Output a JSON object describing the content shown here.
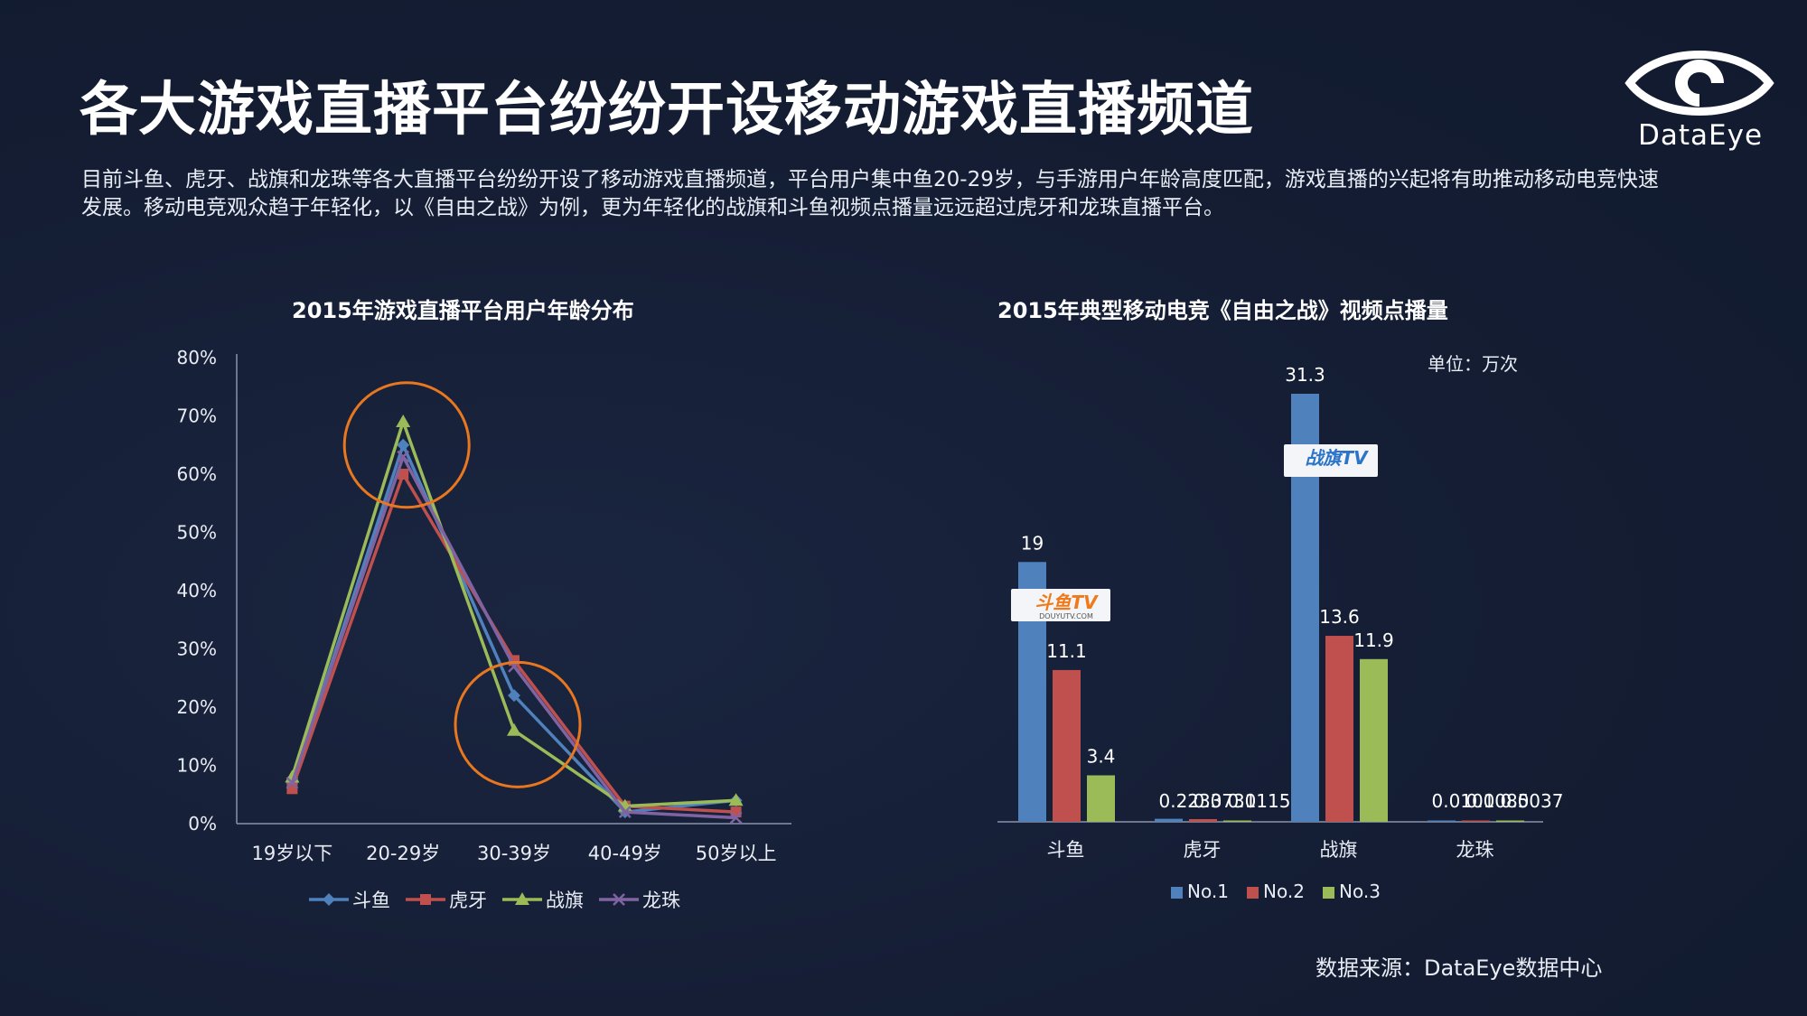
{
  "page": {
    "title": "各大游戏直播平台纷纷开设移动游戏直播频道",
    "description": "目前斗鱼、虎牙、战旗和龙珠等各大直播平台纷纷开设了移动游戏直播频道，平台用户集中鱼20-29岁，与手游用户年龄高度匹配，游戏直播的兴起将有助推动移动电竞快速发展。移动电竞观众趋于年轻化，以《自由之战》为例，更为年轻化的战旗和斗鱼视频点播量远远超过虎牙和龙珠直播平台。",
    "logo_text": "DataEye",
    "source": "数据来源：DataEye数据中心"
  },
  "colors": {
    "background": "#141d33",
    "blue": "#4f81bd",
    "red": "#c0504d",
    "green": "#9bbb59",
    "purple": "#8064a2",
    "orange": "#e8771f"
  },
  "chart_data": [
    {
      "type": "line",
      "title": "2015年游戏直播平台用户年龄分布",
      "categories": [
        "19岁以下",
        "20-29岁",
        "30-39岁",
        "40-49岁",
        "50岁以上"
      ],
      "yticks": [
        "0%",
        "10%",
        "20%",
        "30%",
        "40%",
        "50%",
        "60%",
        "70%",
        "80%"
      ],
      "ylim": [
        0,
        80
      ],
      "series": [
        {
          "name": "斗鱼",
          "values": [
            7,
            65,
            22,
            2,
            4
          ],
          "color": "#4f81bd",
          "marker": "diamond"
        },
        {
          "name": "虎牙",
          "values": [
            6,
            60,
            28,
            3,
            2
          ],
          "color": "#c0504d",
          "marker": "square"
        },
        {
          "name": "战旗",
          "values": [
            8,
            69,
            16,
            3,
            4
          ],
          "color": "#9bbb59",
          "marker": "triangle"
        },
        {
          "name": "龙珠",
          "values": [
            7,
            63,
            27,
            2,
            1
          ],
          "color": "#8064a2",
          "marker": "x"
        }
      ],
      "highlights": [
        {
          "category": "20-29岁",
          "value": 65
        },
        {
          "category": "30-39岁",
          "value": 17
        }
      ],
      "legend": "bottom",
      "grid": false
    },
    {
      "type": "bar",
      "title": "2015年典型移动电竞《自由之战》视频点播量",
      "unit_label": "单位：万次",
      "categories": [
        "斗鱼",
        "虎牙",
        "战旗",
        "龙珠"
      ],
      "series": [
        {
          "name": "No.1",
          "values": [
            19,
            0.2233,
            31.3,
            0.0101
          ],
          "labels": [
            "19",
            "0.2233",
            "31.3",
            "0.0101"
          ],
          "color": "#4f81bd"
        },
        {
          "name": "No.2",
          "values": [
            11.1,
            0.0731,
            13.6,
            0.0085
          ],
          "labels": [
            "11.1",
            "0.0731",
            "13.6",
            "0.0085"
          ],
          "color": "#c0504d"
        },
        {
          "name": "No.3",
          "values": [
            3.4,
            0.0115,
            11.9,
            0.0037
          ],
          "labels": [
            "3.4",
            "0.0115",
            "11.9",
            "0.0037"
          ],
          "color": "#9bbb59"
        }
      ],
      "badges": [
        {
          "category": "斗鱼",
          "text": "斗鱼TV",
          "subtext": "DOUYUTV.COM"
        },
        {
          "category": "战旗",
          "text": "战旗TV",
          "subtext": ""
        }
      ],
      "legend": "bottom",
      "grid": false
    }
  ]
}
